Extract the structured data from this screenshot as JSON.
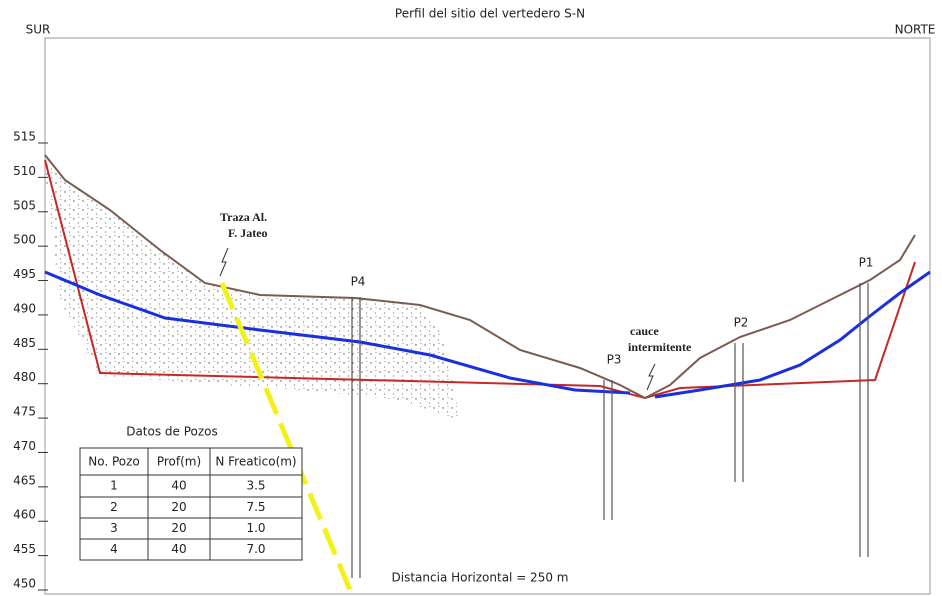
{
  "header": {
    "title": "Perfil del sitio del vertedero S-N",
    "left_label": "SUR",
    "right_label": "NORTE"
  },
  "axis": {
    "ticks": [
      515,
      510,
      505,
      500,
      495,
      490,
      485,
      480,
      475,
      470,
      465,
      460,
      455,
      450
    ]
  },
  "annotations": {
    "fault": [
      "Traza Al.",
      "F. Jateo"
    ],
    "stream": [
      "cauce",
      "intermitente"
    ]
  },
  "wells": [
    {
      "label": "P4"
    },
    {
      "label": "P3"
    },
    {
      "label": "P2"
    },
    {
      "label": "P1"
    }
  ],
  "table": {
    "title": "Datos de Pozos",
    "columns": [
      "No. Pozo",
      "Prof(m)",
      "N Freatico(m)"
    ],
    "rows": [
      [
        "1",
        "40",
        "3.5"
      ],
      [
        "2",
        "20",
        "7.5"
      ],
      [
        "3",
        "20",
        "1.0"
      ],
      [
        "4",
        "40",
        "7.0"
      ]
    ]
  },
  "footer": "Distancia Horizontal = 250 m"
}
